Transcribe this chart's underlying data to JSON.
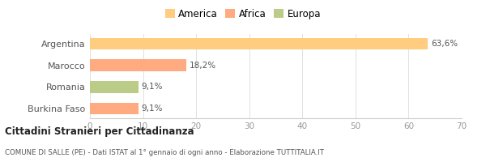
{
  "categories": [
    "Argentina",
    "Marocco",
    "Romania",
    "Burkina Faso"
  ],
  "values": [
    63.6,
    18.2,
    9.1,
    9.1
  ],
  "labels": [
    "63,6%",
    "18,2%",
    "9,1%",
    "9,1%"
  ],
  "colors": [
    "#FFCC80",
    "#FFAA80",
    "#BBCC88",
    "#FFAA80"
  ],
  "legend": [
    {
      "label": "America",
      "color": "#FFCC80"
    },
    {
      "label": "Africa",
      "color": "#FFAA80"
    },
    {
      "label": "Europa",
      "color": "#BBCC88"
    }
  ],
  "xlim": [
    0,
    70
  ],
  "xticks": [
    0,
    10,
    20,
    30,
    40,
    50,
    60,
    70
  ],
  "title_bold": "Cittadini Stranieri per Cittadinanza",
  "subtitle": "COMUNE DI SALLE (PE) - Dati ISTAT al 1° gennaio di ogni anno - Elaborazione TUTTITALIA.IT",
  "background_color": "#ffffff",
  "bar_height": 0.55
}
